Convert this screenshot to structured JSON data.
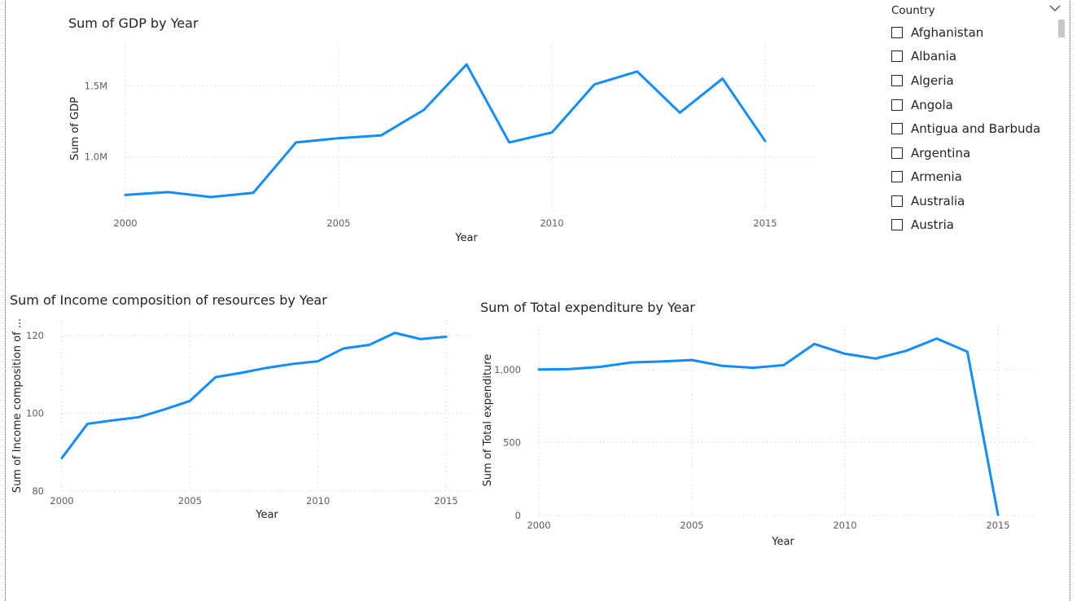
{
  "accent_color": "#118DFF",
  "slicer": {
    "title": "Country",
    "chevron_icon": "chevron-down-icon",
    "items": [
      {
        "label": "Afghanistan",
        "checked": false
      },
      {
        "label": "Albania",
        "checked": false
      },
      {
        "label": "Algeria",
        "checked": false
      },
      {
        "label": "Angola",
        "checked": false
      },
      {
        "label": "Antigua and Barbuda",
        "checked": false
      },
      {
        "label": "Argentina",
        "checked": false
      },
      {
        "label": "Armenia",
        "checked": false
      },
      {
        "label": "Australia",
        "checked": false
      },
      {
        "label": "Austria",
        "checked": false
      }
    ]
  },
  "chart_data": [
    {
      "type": "line",
      "title": "Sum of GDP by Year",
      "xlabel": "Year",
      "ylabel": "Sum of GDP",
      "x": [
        2000,
        2001,
        2002,
        2003,
        2004,
        2005,
        2006,
        2007,
        2008,
        2009,
        2010,
        2011,
        2012,
        2013,
        2014,
        2015
      ],
      "series": [
        {
          "values": [
            730000,
            750000,
            715000,
            745000,
            1100000,
            1130000,
            1150000,
            1330000,
            1650000,
            1100000,
            1170000,
            1510000,
            1600000,
            1310000,
            1550000,
            1110000
          ]
        }
      ],
      "xticks": [
        2000,
        2005,
        2010,
        2015
      ],
      "xtick_labels": [
        "2000",
        "2005",
        "2010",
        "2015"
      ],
      "yticks": [
        1000000,
        1500000
      ],
      "ytick_labels": [
        "1.0M",
        "1.5M"
      ],
      "xlim": [
        2000,
        2016.2
      ],
      "ylim": [
        600000,
        1800000
      ],
      "grid": true,
      "color": "#118DFF"
    },
    {
      "type": "line",
      "title": "Sum of Income composition of resources by Year",
      "xlabel": "Year",
      "ylabel": "Sum of Income composition of ...",
      "x": [
        2000,
        2001,
        2002,
        2003,
        2004,
        2005,
        2006,
        2007,
        2008,
        2009,
        2010,
        2011,
        2012,
        2013,
        2014,
        2015
      ],
      "series": [
        {
          "values": [
            88.5,
            97.3,
            98.2,
            99,
            101,
            103.2,
            109.3,
            110.4,
            111.7,
            112.7,
            113.4,
            116.7,
            117.6,
            120.7,
            119.1,
            119.7
          ]
        }
      ],
      "xticks": [
        2000,
        2005,
        2010,
        2015
      ],
      "xtick_labels": [
        "2000",
        "2005",
        "2010",
        "2015"
      ],
      "yticks": [
        80,
        100,
        120
      ],
      "ytick_labels": [
        "80",
        "100",
        "120"
      ],
      "xlim": [
        2000,
        2016
      ],
      "ylim": [
        80,
        124
      ],
      "grid": true,
      "color": "#118DFF"
    },
    {
      "type": "line",
      "title": "Sum of Total expenditure by Year",
      "xlabel": "Year",
      "ylabel": "Sum of Total expenditure",
      "x": [
        2000,
        2001,
        2002,
        2003,
        2004,
        2005,
        2006,
        2007,
        2008,
        2009,
        2010,
        2011,
        2012,
        2013,
        2014,
        2015
      ],
      "series": [
        {
          "values": [
            1000,
            1003,
            1018,
            1048,
            1055,
            1065,
            1025,
            1012,
            1030,
            1175,
            1108,
            1075,
            1128,
            1212,
            1122,
            5
          ]
        }
      ],
      "xticks": [
        2000,
        2005,
        2010,
        2015
      ],
      "xtick_labels": [
        "2000",
        "2005",
        "2010",
        "2015"
      ],
      "yticks": [
        0,
        500,
        1000
      ],
      "ytick_labels": [
        "0",
        "500",
        "1,000"
      ],
      "xlim": [
        2000,
        2016.2
      ],
      "ylim": [
        0,
        1300
      ],
      "grid": true,
      "color": "#118DFF"
    }
  ]
}
